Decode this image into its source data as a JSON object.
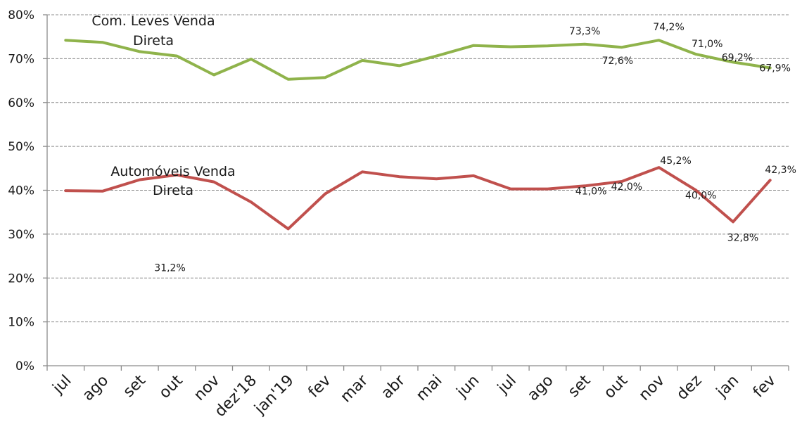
{
  "chart_data": {
    "type": "line",
    "categories": [
      "jul",
      "ago",
      "set",
      "out",
      "nov",
      "dez'18",
      "jan'19",
      "fev",
      "mar",
      "abr",
      "mai",
      "jun",
      "jul",
      "ago",
      "set",
      "out",
      "nov",
      "dez",
      "jan",
      "fev"
    ],
    "series": [
      {
        "name": "Com. Leves Venda Direta",
        "name_lines": [
          "Com. Leves Venda",
          "Direta"
        ],
        "color": "#8fb34b",
        "values": [
          74.2,
          73.7,
          71.6,
          70.6,
          66.3,
          69.9,
          65.3,
          65.7,
          69.6,
          68.4,
          70.6,
          73.0,
          72.7,
          72.9,
          73.3,
          72.6,
          74.2,
          71.0,
          69.2,
          67.9
        ],
        "data_labels": [
          {
            "index": 14,
            "text": "73,3%"
          },
          {
            "index": 15,
            "text": "72,6%"
          },
          {
            "index": 16,
            "text": "74,2%"
          },
          {
            "index": 17,
            "text": "71,0%"
          },
          {
            "index": 18,
            "text": "69,2%"
          },
          {
            "index": 19,
            "text": "67,9%"
          }
        ]
      },
      {
        "name": "Automóveis Venda Direta",
        "name_lines": [
          "Automóveis Venda",
          "Direta"
        ],
        "color": "#c0504d",
        "values": [
          39.9,
          39.8,
          42.4,
          43.5,
          41.9,
          37.3,
          31.2,
          39.2,
          44.2,
          43.1,
          42.6,
          43.3,
          40.3,
          40.3,
          41.0,
          42.0,
          45.2,
          40.0,
          32.8,
          42.3
        ],
        "data_labels": [
          {
            "index": 6,
            "text": "31,2%"
          },
          {
            "index": 14,
            "text": "41,0%"
          },
          {
            "index": 15,
            "text": "42,0%"
          },
          {
            "index": 16,
            "text": "45,2%"
          },
          {
            "index": 17,
            "text": "40,0%"
          },
          {
            "index": 18,
            "text": "32,8%"
          },
          {
            "index": 19,
            "text": "42,3%"
          }
        ]
      }
    ],
    "y_ticks": [
      "0%",
      "10%",
      "20%",
      "30%",
      "40%",
      "50%",
      "60%",
      "70%",
      "80%"
    ],
    "ylim": [
      0,
      80
    ],
    "grid": true,
    "grid_style": "dashed",
    "title": "",
    "xlabel": "",
    "ylabel": ""
  }
}
